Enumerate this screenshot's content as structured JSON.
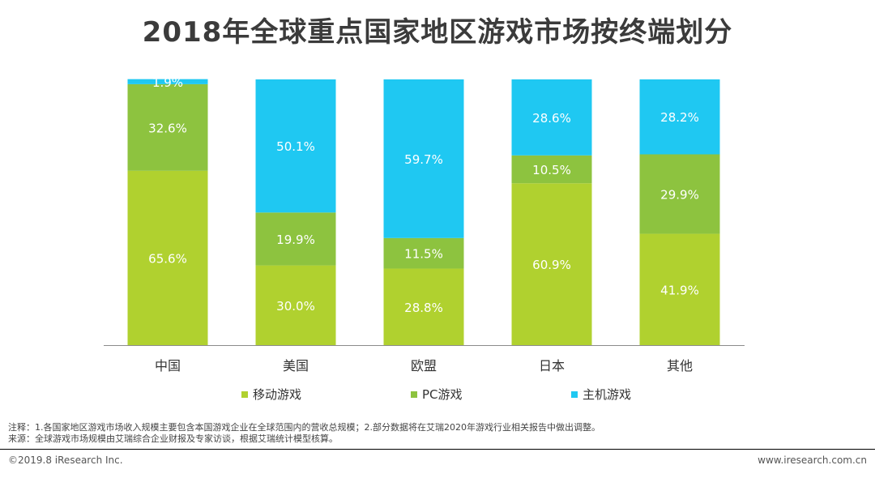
{
  "page": {
    "title": "2018年全球重点国家地区游戏市场按终端划分",
    "note_line1": "注释：1.各国家地区游戏市场收入规模主要包含本国游戏企业在全球范围内的营收总规模；2.部分数据将在艾瑞2020年游戏行业相关报告中做出调整。",
    "note_line2": "来源：全球游戏市场规模由艾瑞综合企业财报及专家访谈，根据艾瑞统计模型核算。",
    "copyright": "©2019.8 iResearch Inc.",
    "website": "www.iresearch.com.cn"
  },
  "chart_data": {
    "type": "bar",
    "stacked": true,
    "title": "2018年全球重点国家地区游戏市场按终端划分",
    "categories": [
      "中国",
      "美国",
      "欧盟",
      "日本",
      "其他"
    ],
    "series": [
      {
        "name": "移动游戏",
        "color": "#b0d12f",
        "values": [
          65.6,
          30.0,
          28.8,
          60.9,
          41.9
        ],
        "labels": [
          "65.6%",
          "30.0%",
          "28.8%",
          "60.9%",
          "41.9%"
        ]
      },
      {
        "name": "PC游戏",
        "color": "#8dc33f",
        "values": [
          32.6,
          19.9,
          11.5,
          10.5,
          29.9
        ],
        "labels": [
          "32.6%",
          "19.9%",
          "11.5%",
          "10.5%",
          "29.9%"
        ]
      },
      {
        "name": "主机游戏",
        "color": "#1fc8f2",
        "values": [
          1.9,
          50.1,
          59.7,
          28.6,
          28.2
        ],
        "labels": [
          "1.9%",
          "50.1%",
          "59.7%",
          "28.6%",
          "28.2%"
        ]
      }
    ],
    "ylim": [
      0,
      100
    ],
    "legend_position": "bottom",
    "grid": false
  }
}
